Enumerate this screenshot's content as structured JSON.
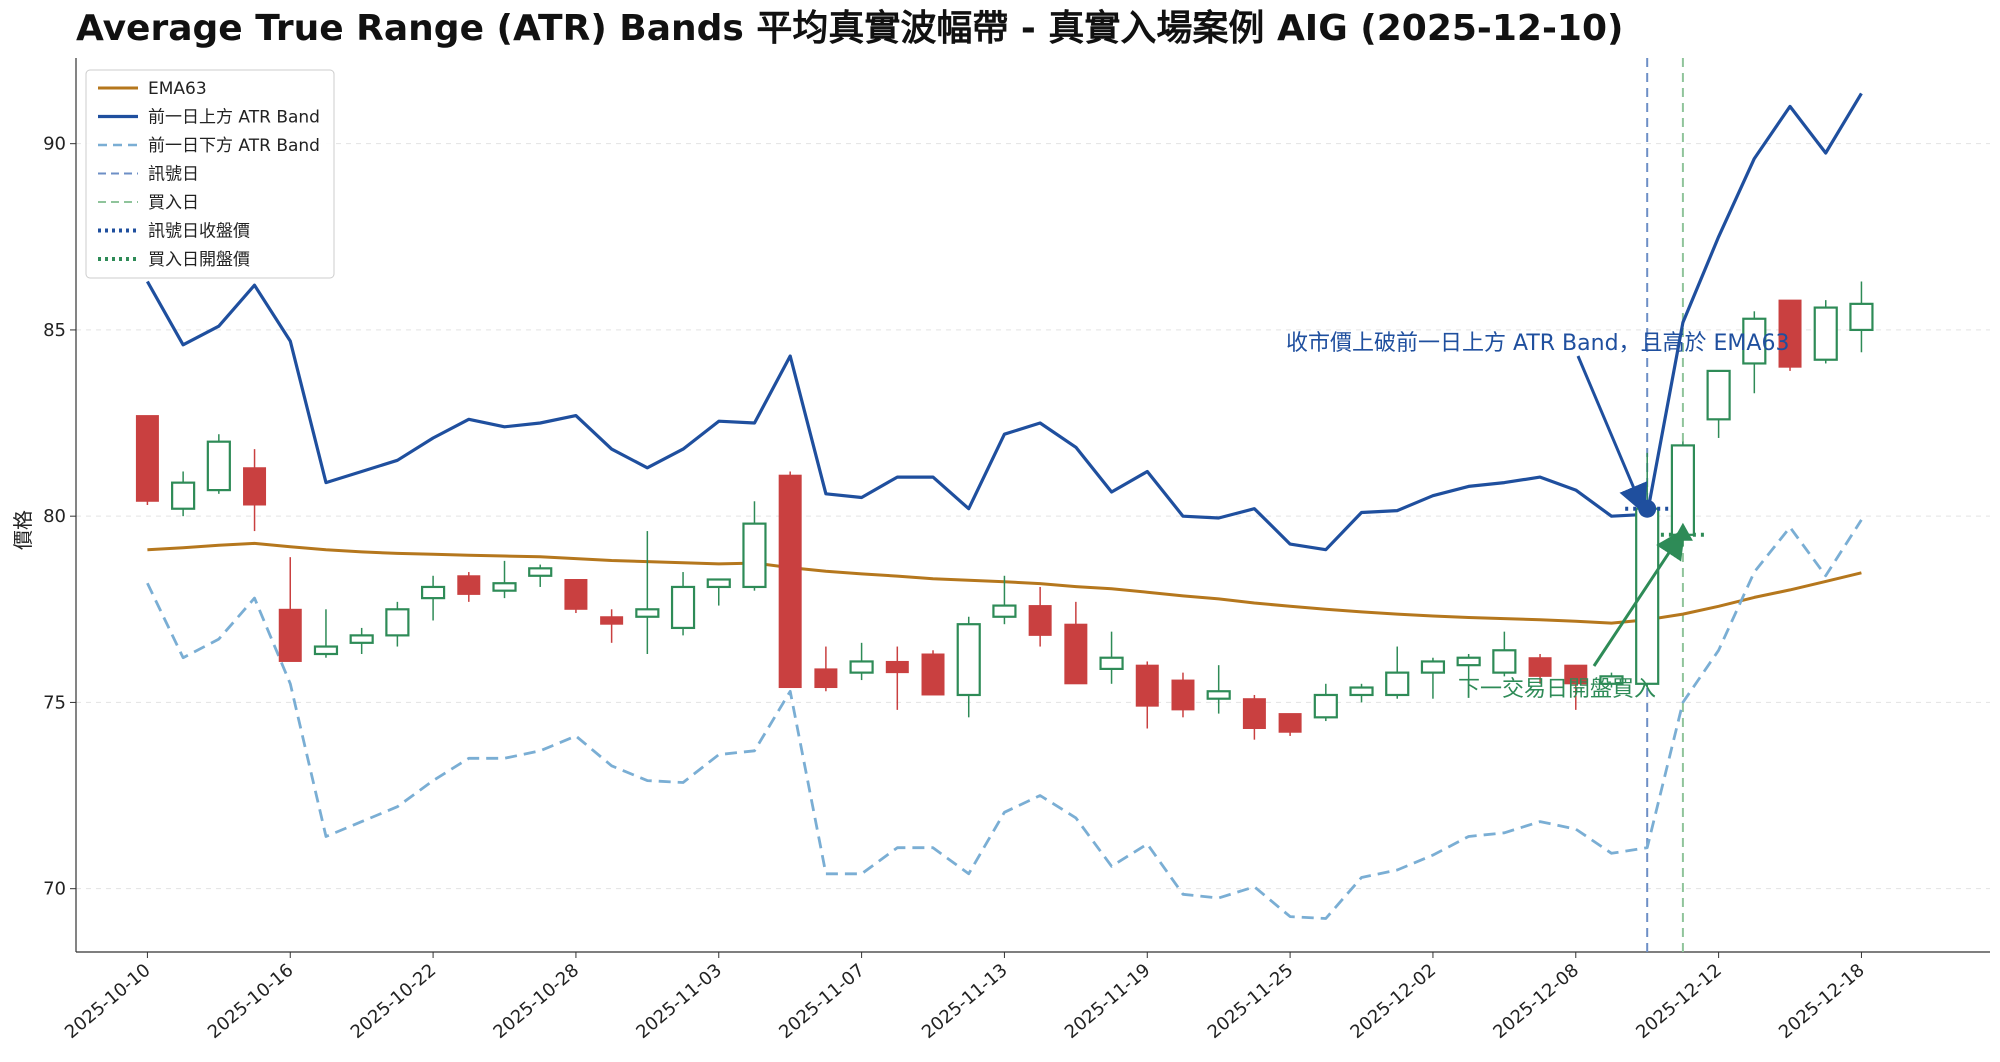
{
  "chart_data": {
    "type": "candlestick",
    "title": "Average True Range (ATR) Bands 平均真實波幅帶 - 真實入場案例 AIG (2025-12-10)",
    "ylabel": "價格",
    "xlabel": "",
    "ylim": [
      68.3,
      92.3
    ],
    "yticks": [
      70,
      75,
      80,
      85,
      90
    ],
    "grid": "horizontal-dashed",
    "legend_position": "top-left",
    "x": [
      "2025-10-10",
      "2025-10-13",
      "2025-10-14",
      "2025-10-15",
      "2025-10-16",
      "2025-10-17",
      "2025-10-20",
      "2025-10-21",
      "2025-10-22",
      "2025-10-23",
      "2025-10-24",
      "2025-10-27",
      "2025-10-28",
      "2025-10-29",
      "2025-10-30",
      "2025-10-31",
      "2025-11-03",
      "2025-11-04",
      "2025-11-05",
      "2025-11-06",
      "2025-11-07",
      "2025-11-10",
      "2025-11-11",
      "2025-11-12",
      "2025-11-13",
      "2025-11-14",
      "2025-11-17",
      "2025-11-18",
      "2025-11-19",
      "2025-11-20",
      "2025-11-21",
      "2025-11-24",
      "2025-11-25",
      "2025-11-26",
      "2025-11-28",
      "2025-12-01",
      "2025-12-02",
      "2025-12-03",
      "2025-12-04",
      "2025-12-05",
      "2025-12-08",
      "2025-12-09",
      "2025-12-10",
      "2025-12-11",
      "2025-12-12",
      "2025-12-15",
      "2025-12-16",
      "2025-12-17",
      "2025-12-18"
    ],
    "xtick_labels": [
      "2025-10-10",
      "2025-10-16",
      "2025-10-22",
      "2025-10-28",
      "2025-11-03",
      "2025-11-07",
      "2025-11-13",
      "2025-11-19",
      "2025-11-25",
      "2025-12-02",
      "2025-12-08",
      "2025-12-12",
      "2025-12-18"
    ],
    "xtick_indices": [
      0,
      4,
      8,
      12,
      16,
      20,
      24,
      28,
      32,
      36,
      40,
      44,
      48
    ],
    "ohlc": [
      [
        82.7,
        82.7,
        80.3,
        80.4
      ],
      [
        80.2,
        81.2,
        80.0,
        80.9
      ],
      [
        80.7,
        82.2,
        80.6,
        82.0
      ],
      [
        81.3,
        81.8,
        79.6,
        80.3
      ],
      [
        77.5,
        78.9,
        76.1,
        76.1
      ],
      [
        76.3,
        77.5,
        76.2,
        76.5
      ],
      [
        76.6,
        77.0,
        76.3,
        76.8
      ],
      [
        76.8,
        77.7,
        76.5,
        77.5
      ],
      [
        77.8,
        78.4,
        77.2,
        78.1
      ],
      [
        78.4,
        78.5,
        77.7,
        77.9
      ],
      [
        78.0,
        78.8,
        77.8,
        78.2
      ],
      [
        78.4,
        78.7,
        78.1,
        78.6
      ],
      [
        78.3,
        78.3,
        77.4,
        77.5
      ],
      [
        77.3,
        77.5,
        76.6,
        77.1
      ],
      [
        77.3,
        79.6,
        76.3,
        77.5
      ],
      [
        77.0,
        78.5,
        76.8,
        78.1
      ],
      [
        78.1,
        78.3,
        77.6,
        78.3
      ],
      [
        78.1,
        80.4,
        78.0,
        79.8
      ],
      [
        81.1,
        81.2,
        75.4,
        75.4
      ],
      [
        75.9,
        76.5,
        75.3,
        75.4
      ],
      [
        75.8,
        76.6,
        75.6,
        76.1
      ],
      [
        76.1,
        76.5,
        74.8,
        75.8
      ],
      [
        76.3,
        76.4,
        75.2,
        75.2
      ],
      [
        75.2,
        77.3,
        74.6,
        77.1
      ],
      [
        77.3,
        78.4,
        77.1,
        77.6
      ],
      [
        77.6,
        78.1,
        76.5,
        76.8
      ],
      [
        77.1,
        77.7,
        75.5,
        75.5
      ],
      [
        75.9,
        76.9,
        75.5,
        76.2
      ],
      [
        76.0,
        76.1,
        74.3,
        74.9
      ],
      [
        75.6,
        75.8,
        74.6,
        74.8
      ],
      [
        75.1,
        76.0,
        74.7,
        75.3
      ],
      [
        75.1,
        75.2,
        74.0,
        74.3
      ],
      [
        74.7,
        74.7,
        74.1,
        74.2
      ],
      [
        74.6,
        75.5,
        74.5,
        75.2
      ],
      [
        75.2,
        75.5,
        75.0,
        75.4
      ],
      [
        75.2,
        76.5,
        75.1,
        75.8
      ],
      [
        75.8,
        76.2,
        75.1,
        76.1
      ],
      [
        76.0,
        76.3,
        75.5,
        76.2
      ],
      [
        75.8,
        76.9,
        75.7,
        76.4
      ],
      [
        76.2,
        76.3,
        75.5,
        75.7
      ],
      [
        76.0,
        76.0,
        74.8,
        75.5
      ],
      [
        75.5,
        75.8,
        75.4,
        75.7
      ],
      [
        75.5,
        81.7,
        75.4,
        80.2
      ],
      [
        79.5,
        82.0,
        79.2,
        81.9
      ],
      [
        82.6,
        83.9,
        82.1,
        83.9
      ],
      [
        84.1,
        85.5,
        83.3,
        85.3
      ],
      [
        85.8,
        85.8,
        83.9,
        84.0
      ],
      [
        84.2,
        85.8,
        84.1,
        85.6
      ],
      [
        85.0,
        86.3,
        84.4,
        85.7
      ]
    ],
    "series": [
      {
        "name": "EMA63",
        "color": "#b5771d",
        "style": "solid",
        "values": [
          79.1,
          79.15,
          79.22,
          79.27,
          79.18,
          79.1,
          79.04,
          79.0,
          78.98,
          78.95,
          78.93,
          78.91,
          78.86,
          78.81,
          78.78,
          78.75,
          78.72,
          78.74,
          78.62,
          78.52,
          78.45,
          78.39,
          78.32,
          78.28,
          78.24,
          78.19,
          78.11,
          78.05,
          77.96,
          77.86,
          77.78,
          77.67,
          77.58,
          77.5,
          77.43,
          77.37,
          77.32,
          77.28,
          77.25,
          77.22,
          77.18,
          77.13,
          77.22,
          77.37,
          77.58,
          77.82,
          78.02,
          78.25,
          78.48
        ]
      },
      {
        "name": "前一日上方 ATR Band",
        "color": "#1f4f9e",
        "style": "solid",
        "values": [
          86.3,
          84.6,
          85.1,
          86.2,
          84.7,
          80.9,
          81.2,
          81.5,
          82.1,
          82.6,
          82.4,
          82.5,
          82.7,
          81.8,
          81.3,
          81.8,
          82.55,
          82.5,
          84.3,
          80.6,
          80.5,
          81.05,
          81.05,
          80.2,
          82.2,
          82.5,
          81.85,
          80.65,
          81.2,
          80.0,
          79.95,
          80.2,
          79.25,
          79.1,
          80.1,
          80.15,
          80.55,
          80.8,
          80.9,
          81.05,
          80.7,
          80.0,
          80.05,
          85.2,
          87.5,
          89.6,
          91.0,
          89.75,
          91.35
        ]
      },
      {
        "name": "前一日下方 ATR Band",
        "color": "#7aaed4",
        "style": "dashed",
        "values": [
          78.2,
          76.2,
          76.7,
          77.8,
          75.5,
          71.4,
          71.8,
          72.2,
          72.9,
          73.5,
          73.5,
          73.7,
          74.1,
          73.3,
          72.9,
          72.85,
          73.6,
          73.7,
          75.3,
          70.4,
          70.4,
          71.1,
          71.1,
          70.4,
          72.05,
          72.5,
          71.9,
          70.6,
          71.2,
          69.85,
          69.75,
          70.05,
          69.25,
          69.2,
          70.3,
          70.5,
          70.9,
          71.4,
          71.5,
          71.8,
          71.6,
          70.95,
          71.1,
          75.0,
          76.4,
          78.5,
          79.7,
          78.4,
          79.9
        ]
      }
    ],
    "legend": [
      "EMA63",
      "前一日上方 ATR Band",
      "前一日下方 ATR Band",
      "訊號日",
      "買入日",
      "訊號日收盤價",
      "買入日開盤價"
    ],
    "signal_day": {
      "label": "訊號日",
      "index": 42,
      "date": "2025-12-10",
      "close": 80.2,
      "close_label": "訊號日收盤價",
      "color": "#6d8fc6",
      "marker_color": "#1f4f9e"
    },
    "buy_day": {
      "label": "買入日",
      "index": 43,
      "date": "2025-12-11",
      "open": 79.5,
      "open_label": "買入日開盤價",
      "color": "#8fc49b",
      "marker_color": "#2e8b57"
    },
    "annotations": [
      {
        "text": "收市價上破前一日上方 ATR Band，且高於 EMA63",
        "color": "#1f4f9e",
        "target_index": 42,
        "target_value": 80.2
      },
      {
        "text": "下一交易日開盤買入",
        "color": "#2e8b57",
        "target_index": 43,
        "target_value": 79.5
      }
    ],
    "up_color": "#2e8b57",
    "down_color": "#c94040"
  }
}
